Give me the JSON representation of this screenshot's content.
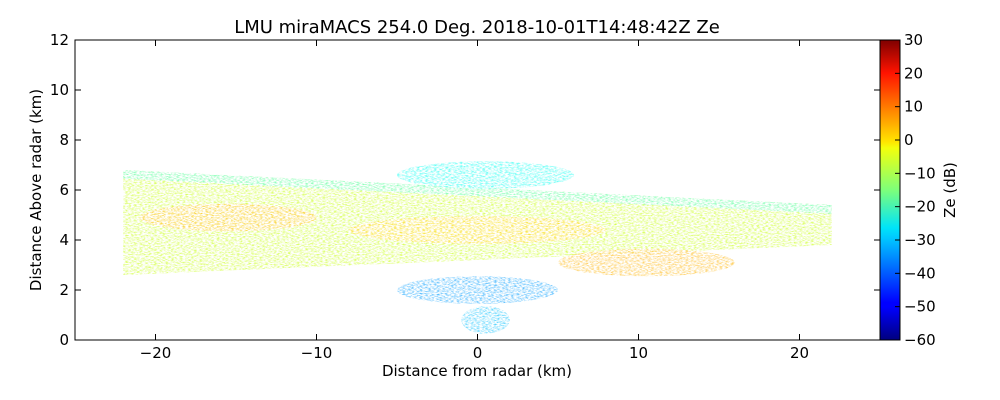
{
  "chart_data": {
    "type": "heatmap",
    "title": "LMU miraMACS 254.0 Deg. 2018-10-01T14:48:42Z  Ze",
    "xlabel": "Distance from radar (km)",
    "ylabel": "Distance Above radar  (km)",
    "xlim": [
      -25,
      25
    ],
    "ylim": [
      0,
      12
    ],
    "xticks": [
      -20,
      -10,
      0,
      10,
      20
    ],
    "yticks": [
      0,
      2,
      4,
      6,
      8,
      10,
      12
    ],
    "colorbar": {
      "label": "Ze (dB)",
      "range": [
        -60,
        30
      ],
      "ticks": [
        30,
        20,
        10,
        0,
        -10,
        -20,
        -30,
        -40,
        -50,
        -60
      ],
      "colormap": "jet"
    },
    "grid": false,
    "echo_layers": [
      {
        "x_range": [
          -22,
          22
        ],
        "y_top_left": 6.8,
        "y_top_right": 5.4,
        "y_bottom_left": 2.6,
        "y_bottom_right": 3.8,
        "value_db": -8
      },
      {
        "x_range": [
          -21,
          -10
        ],
        "y_center": 4.9,
        "value_db": 2
      },
      {
        "x_range": [
          -8,
          8
        ],
        "y_center": 4.4,
        "value_db": 0
      },
      {
        "x_range": [
          5,
          16
        ],
        "y_center": 3.1,
        "value_db": 3
      },
      {
        "x_range": [
          -5,
          6
        ],
        "y_center": 6.6,
        "value_db": -25
      },
      {
        "x_range": [
          -5,
          5
        ],
        "y_center": 2.0,
        "value_db": -35
      },
      {
        "x_range": [
          -1,
          2
        ],
        "y_center": 0.8,
        "value_db": -32
      }
    ]
  }
}
